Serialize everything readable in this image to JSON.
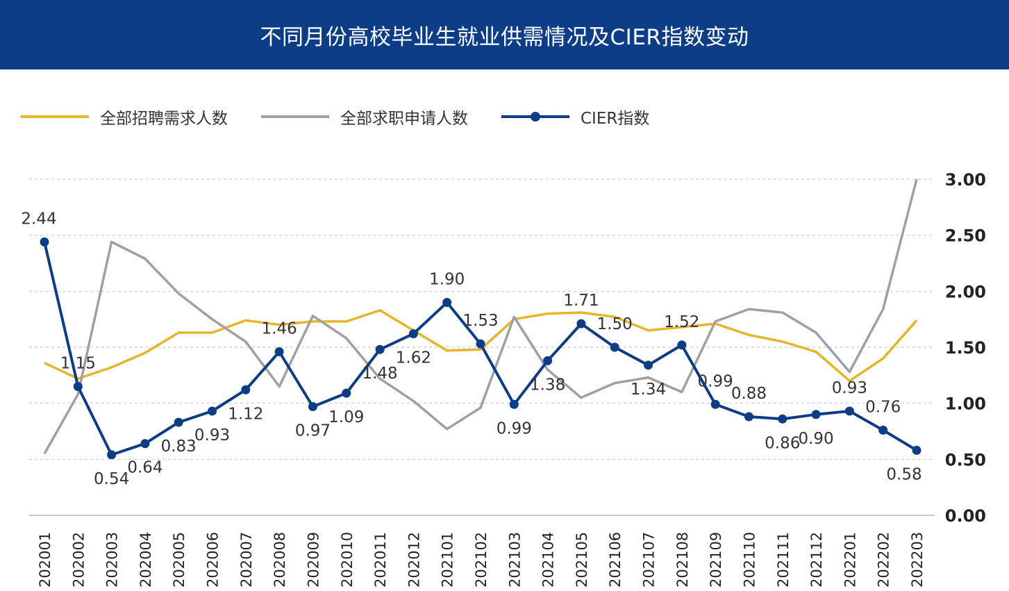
{
  "header": {
    "title": "不同月份高校毕业生就业供需情况及CIER指数变动"
  },
  "legend": [
    {
      "label": "全部招聘需求人数",
      "color": "#e6b62a",
      "marker": false
    },
    {
      "label": "全部求职申请人数",
      "color": "#a0a0a0",
      "marker": true
    },
    {
      "label": "CIER指数",
      "color": "#0c3d86",
      "marker": true
    }
  ],
  "chart_data": {
    "type": "line",
    "x": [
      "202001",
      "202002",
      "202003",
      "202004",
      "202005",
      "202006",
      "202007",
      "202008",
      "202009",
      "202010",
      "202011",
      "202012",
      "202101",
      "202102",
      "202103",
      "202104",
      "202105",
      "202106",
      "202107",
      "202108",
      "202109",
      "202110",
      "202111",
      "202112",
      "202201",
      "202202",
      "202203"
    ],
    "ylim": [
      0,
      3
    ],
    "yticks": [
      "0.00",
      "0.50",
      "1.00",
      "1.50",
      "2.00",
      "2.50",
      "3.00"
    ],
    "grid": true,
    "legend_position": "top-left",
    "series": [
      {
        "name": "全部招聘需求人数",
        "color": "#e6b62a",
        "values": [
          1.36,
          1.22,
          1.32,
          1.45,
          1.63,
          1.63,
          1.74,
          1.7,
          1.73,
          1.73,
          1.83,
          1.65,
          1.47,
          1.48,
          1.75,
          1.8,
          1.81,
          1.77,
          1.65,
          1.68,
          1.71,
          1.61,
          1.55,
          1.46,
          1.2,
          1.4,
          1.74
        ]
      },
      {
        "name": "全部求职申请人数",
        "color": "#a0a0a0",
        "values": [
          0.55,
          1.08,
          2.44,
          2.29,
          1.98,
          1.75,
          1.55,
          1.15,
          1.78,
          1.58,
          1.22,
          1.02,
          0.77,
          0.96,
          1.77,
          1.3,
          1.05,
          1.18,
          1.23,
          1.1,
          1.73,
          1.84,
          1.81,
          1.63,
          1.28,
          1.84,
          3.0
        ]
      },
      {
        "name": "CIER指数",
        "color": "#0c3d86",
        "values": [
          2.44,
          1.15,
          0.54,
          0.64,
          0.83,
          0.93,
          1.12,
          1.46,
          0.97,
          1.09,
          1.48,
          1.62,
          1.9,
          1.53,
          0.99,
          1.38,
          1.71,
          1.5,
          1.34,
          1.52,
          0.99,
          0.88,
          0.86,
          0.9,
          0.93,
          0.76,
          0.58
        ],
        "labels": [
          "2.44",
          "1.15",
          "0.54",
          "0.64",
          "0.83",
          "0.93",
          "1.12",
          "1.46",
          "0.97",
          "1.09",
          "1.48",
          "1.62",
          "1.90",
          "1.53",
          "0.99",
          "1.38",
          "1.71",
          "1.50",
          "1.34",
          "1.52",
          "0.99",
          "0.88",
          "0.86",
          "0.90",
          "0.93",
          "0.76",
          "0.58"
        ]
      }
    ]
  }
}
